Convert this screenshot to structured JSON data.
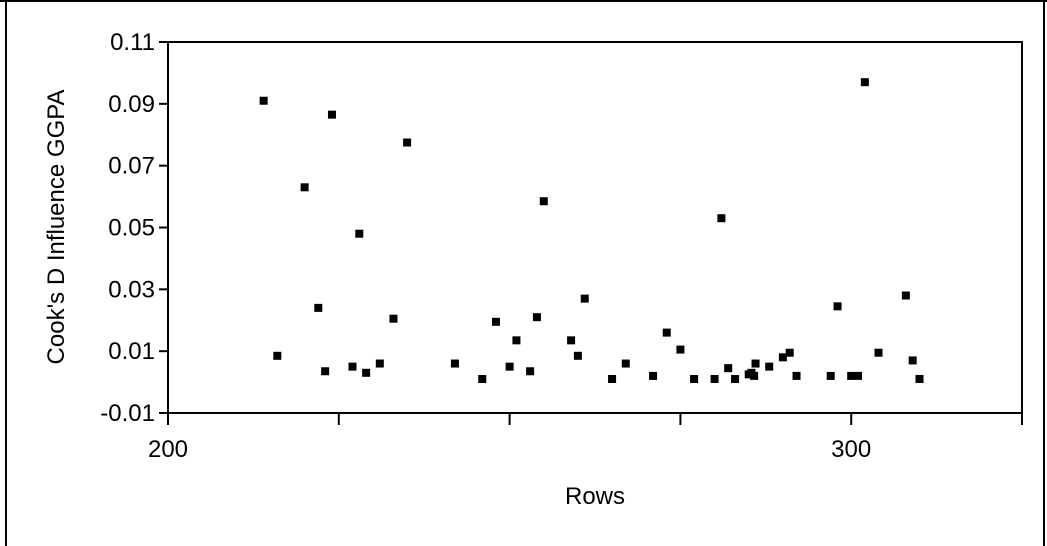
{
  "chart_data": {
    "type": "scatter",
    "title": "",
    "xlabel": "Rows",
    "ylabel": "Cook's D Influence GGPA",
    "xlim": [
      200,
      325
    ],
    "ylim": [
      -0.01,
      0.11
    ],
    "x_ticks": [
      200,
      300
    ],
    "x_tick_labels": [
      "200",
      "300"
    ],
    "x_minor_ticks": [
      225,
      250,
      275,
      325
    ],
    "y_ticks": [
      -0.01,
      0.01,
      0.03,
      0.05,
      0.07,
      0.09,
      0.11
    ],
    "y_tick_labels": [
      "-0.01",
      "0.01",
      "0.03",
      "0.05",
      "0.07",
      "0.09",
      "0.11"
    ],
    "grid": false,
    "legend": "none",
    "marker_color": "#000000",
    "series": [
      {
        "points": [
          [
            214,
            0.091
          ],
          [
            216,
            0.0085
          ],
          [
            220,
            0.063
          ],
          [
            222,
            0.024
          ],
          [
            223,
            0.0035
          ],
          [
            224,
            0.0865
          ],
          [
            227,
            0.005
          ],
          [
            228,
            0.048
          ],
          [
            229,
            0.003
          ],
          [
            231,
            0.006
          ],
          [
            233,
            0.0205
          ],
          [
            235,
            0.0775
          ],
          [
            242,
            0.006
          ],
          [
            246,
            0.001
          ],
          [
            248,
            0.0195
          ],
          [
            250,
            0.005
          ],
          [
            251,
            0.0135
          ],
          [
            253,
            0.0035
          ],
          [
            254,
            0.021
          ],
          [
            255,
            0.0585
          ],
          [
            259,
            0.0135
          ],
          [
            260,
            0.0085
          ],
          [
            261,
            0.027
          ],
          [
            265,
            0.001
          ],
          [
            267,
            0.006
          ],
          [
            271,
            0.002
          ],
          [
            273,
            0.016
          ],
          [
            275,
            0.0105
          ],
          [
            277,
            0.001
          ],
          [
            280,
            0.001
          ],
          [
            281,
            0.053
          ],
          [
            282,
            0.0045
          ],
          [
            283,
            0.001
          ],
          [
            285,
            0.0025
          ],
          [
            285.4,
            0.003
          ],
          [
            285.8,
            0.002
          ],
          [
            286,
            0.006
          ],
          [
            288,
            0.005
          ],
          [
            290,
            0.008
          ],
          [
            291,
            0.0095
          ],
          [
            292,
            0.002
          ],
          [
            297,
            0.002
          ],
          [
            298,
            0.0245
          ],
          [
            300,
            0.002
          ],
          [
            301,
            0.002
          ],
          [
            302,
            0.097
          ],
          [
            304,
            0.0095
          ],
          [
            308,
            0.028
          ],
          [
            309,
            0.007
          ],
          [
            310,
            0.001
          ]
        ]
      }
    ]
  }
}
